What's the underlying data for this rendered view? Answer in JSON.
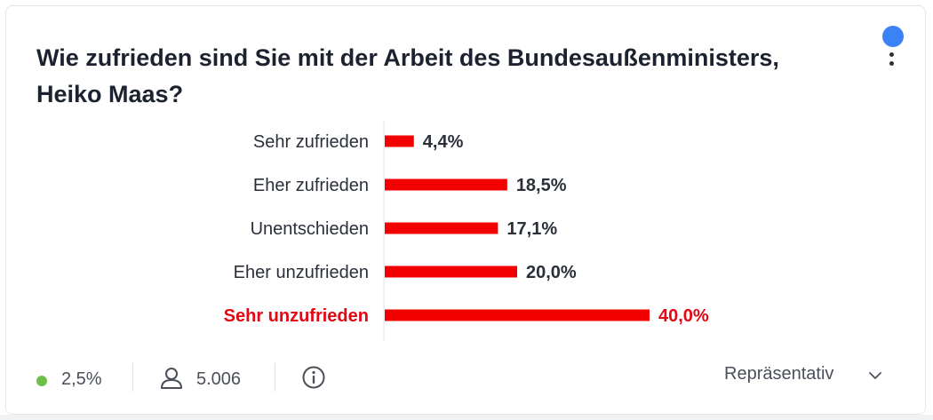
{
  "poll": {
    "question": "Wie zufrieden sind Sie mit der Arbeit des Bundesaußenministers, Heiko Maas?",
    "highlight_color": "#e30613",
    "bar_color": "#f20000",
    "label_color": "#2a2f3a"
  },
  "chart_data": {
    "type": "bar",
    "orientation": "horizontal",
    "categories": [
      "Sehr zufrieden",
      "Eher zufrieden",
      "Unentschieden",
      "Eher unzufrieden",
      "Sehr unzufrieden"
    ],
    "values": [
      4.4,
      18.5,
      17.1,
      20.0,
      40.0
    ],
    "value_labels": [
      "4,4%",
      "18,5%",
      "17,1%",
      "20,0%",
      "40,0%"
    ],
    "highlighted_index": 4,
    "xlim": [
      0,
      40
    ],
    "unit": "%"
  },
  "footer": {
    "margin_of_error": "2,5%",
    "respondents": "5.006",
    "representative_label": "Repräsentativ"
  },
  "icons": {
    "live": "status-dot-icon",
    "respondents": "user-icon",
    "info": "info-icon",
    "menu": "more-vertical-icon",
    "dropdown": "chevron-down-icon"
  }
}
